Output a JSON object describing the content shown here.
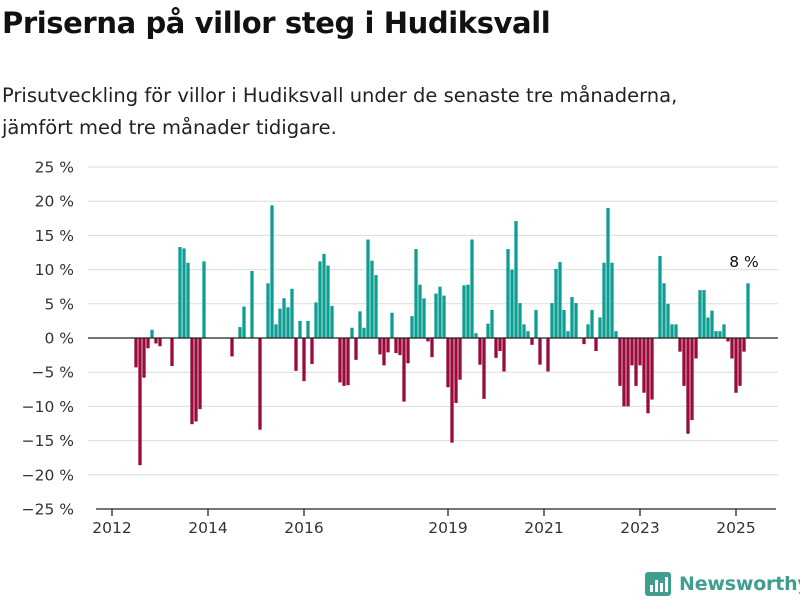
{
  "header": {
    "title": "Priserna på villor steg i Hudiksvall",
    "subtitle_lines": [
      "Prisutveckling för villor i Hudiksvall under de senaste tre månaderna,",
      "jämfört med tre månader tidigare."
    ]
  },
  "brand": {
    "name": "Newsworthy",
    "icon": "bar-chart-logo-icon",
    "color": "#3f9e8d"
  },
  "colors": {
    "positive": "#0f9f92",
    "negative": "#9a0b3c",
    "grid": "#dcdcdc",
    "axis": "#222222"
  },
  "chart_data": {
    "type": "bar",
    "x_axis": {
      "type": "date",
      "ticks": [
        {
          "date": "2012-01",
          "label": "2012"
        },
        {
          "date": "2014-01",
          "label": "2014"
        },
        {
          "date": "2016-01",
          "label": "2016"
        },
        {
          "date": "2019-01",
          "label": "2019"
        },
        {
          "date": "2021-01",
          "label": "2021"
        },
        {
          "date": "2023-01",
          "label": "2023"
        },
        {
          "date": "2025-01",
          "label": "2025"
        }
      ],
      "range": [
        "2011-09",
        "2025-11"
      ]
    },
    "y_axis": {
      "unit": "%",
      "ticks": [
        25,
        20,
        15,
        10,
        5,
        0,
        -5,
        -10,
        -15,
        -20,
        -25
      ],
      "tick_labels": [
        "25 %",
        "20 %",
        "15 %",
        "10 %",
        "5 %",
        "0 %",
        "−5 %",
        "−10 %",
        "−15 %",
        "−20 %",
        "−25 %"
      ],
      "ylim": [
        -25,
        25
      ]
    },
    "grid": true,
    "annotation": {
      "date": "2025-03",
      "label": "8 %"
    },
    "series": [
      {
        "values": [
          {
            "date": "2012-07",
            "value": -4.3
          },
          {
            "date": "2012-08",
            "value": -18.6
          },
          {
            "date": "2012-09",
            "value": -5.8
          },
          {
            "date": "2012-10",
            "value": -1.5
          },
          {
            "date": "2012-11",
            "value": 1.2
          },
          {
            "date": "2012-12",
            "value": -0.8
          },
          {
            "date": "2013-01",
            "value": -1.2
          },
          {
            "date": "2013-04",
            "value": -4.1
          },
          {
            "date": "2013-06",
            "value": 13.3
          },
          {
            "date": "2013-07",
            "value": 13.1
          },
          {
            "date": "2013-08",
            "value": 11.0
          },
          {
            "date": "2013-09",
            "value": -12.6
          },
          {
            "date": "2013-10",
            "value": -12.2
          },
          {
            "date": "2013-11",
            "value": -10.4
          },
          {
            "date": "2013-12",
            "value": 11.2
          },
          {
            "date": "2014-07",
            "value": -2.7
          },
          {
            "date": "2014-09",
            "value": 1.6
          },
          {
            "date": "2014-10",
            "value": 4.6
          },
          {
            "date": "2014-12",
            "value": 9.8
          },
          {
            "date": "2015-02",
            "value": -13.4
          },
          {
            "date": "2015-04",
            "value": 8.0
          },
          {
            "date": "2015-05",
            "value": 19.4
          },
          {
            "date": "2015-06",
            "value": 2.0
          },
          {
            "date": "2015-07",
            "value": 4.3
          },
          {
            "date": "2015-08",
            "value": 5.8
          },
          {
            "date": "2015-09",
            "value": 4.5
          },
          {
            "date": "2015-10",
            "value": 7.2
          },
          {
            "date": "2015-11",
            "value": -4.8
          },
          {
            "date": "2015-12",
            "value": 2.5
          },
          {
            "date": "2016-01",
            "value": -6.3
          },
          {
            "date": "2016-02",
            "value": 2.5
          },
          {
            "date": "2016-03",
            "value": -3.8
          },
          {
            "date": "2016-04",
            "value": 5.2
          },
          {
            "date": "2016-05",
            "value": 11.2
          },
          {
            "date": "2016-06",
            "value": 12.3
          },
          {
            "date": "2016-07",
            "value": 10.6
          },
          {
            "date": "2016-08",
            "value": 4.7
          },
          {
            "date": "2016-10",
            "value": -6.5
          },
          {
            "date": "2016-11",
            "value": -7.0
          },
          {
            "date": "2016-12",
            "value": -6.9
          },
          {
            "date": "2017-01",
            "value": 1.5
          },
          {
            "date": "2017-02",
            "value": -3.2
          },
          {
            "date": "2017-03",
            "value": 3.9
          },
          {
            "date": "2017-04",
            "value": 1.5
          },
          {
            "date": "2017-05",
            "value": 14.4
          },
          {
            "date": "2017-06",
            "value": 11.3
          },
          {
            "date": "2017-07",
            "value": 9.2
          },
          {
            "date": "2017-08",
            "value": -2.4
          },
          {
            "date": "2017-09",
            "value": -4.0
          },
          {
            "date": "2017-10",
            "value": -2.1
          },
          {
            "date": "2017-11",
            "value": 3.7
          },
          {
            "date": "2017-12",
            "value": -2.2
          },
          {
            "date": "2018-01",
            "value": -2.5
          },
          {
            "date": "2018-02",
            "value": -9.3
          },
          {
            "date": "2018-03",
            "value": -3.7
          },
          {
            "date": "2018-04",
            "value": 3.2
          },
          {
            "date": "2018-05",
            "value": 13.0
          },
          {
            "date": "2018-06",
            "value": 7.8
          },
          {
            "date": "2018-07",
            "value": 5.8
          },
          {
            "date": "2018-08",
            "value": -0.5
          },
          {
            "date": "2018-09",
            "value": -2.8
          },
          {
            "date": "2018-10",
            "value": 6.5
          },
          {
            "date": "2018-11",
            "value": 7.5
          },
          {
            "date": "2018-12",
            "value": 6.2
          },
          {
            "date": "2019-01",
            "value": -7.2
          },
          {
            "date": "2019-02",
            "value": -15.3
          },
          {
            "date": "2019-03",
            "value": -9.5
          },
          {
            "date": "2019-04",
            "value": -6.1
          },
          {
            "date": "2019-05",
            "value": 7.7
          },
          {
            "date": "2019-06",
            "value": 7.8
          },
          {
            "date": "2019-07",
            "value": 14.4
          },
          {
            "date": "2019-08",
            "value": 0.7
          },
          {
            "date": "2019-09",
            "value": -3.9
          },
          {
            "date": "2019-10",
            "value": -8.9
          },
          {
            "date": "2019-11",
            "value": 2.1
          },
          {
            "date": "2019-12",
            "value": 4.1
          },
          {
            "date": "2020-01",
            "value": -2.9
          },
          {
            "date": "2020-02",
            "value": -1.9
          },
          {
            "date": "2020-03",
            "value": -4.9
          },
          {
            "date": "2020-04",
            "value": 13.0
          },
          {
            "date": "2020-05",
            "value": 10.0
          },
          {
            "date": "2020-06",
            "value": 17.1
          },
          {
            "date": "2020-07",
            "value": 5.1
          },
          {
            "date": "2020-08",
            "value": 2.0
          },
          {
            "date": "2020-09",
            "value": 1.0
          },
          {
            "date": "2020-10",
            "value": -1.0
          },
          {
            "date": "2020-11",
            "value": 4.1
          },
          {
            "date": "2020-12",
            "value": -3.9
          },
          {
            "date": "2021-02",
            "value": -4.9
          },
          {
            "date": "2021-03",
            "value": 5.1
          },
          {
            "date": "2021-04",
            "value": 10.1
          },
          {
            "date": "2021-05",
            "value": 11.1
          },
          {
            "date": "2021-06",
            "value": 4.1
          },
          {
            "date": "2021-07",
            "value": 1.0
          },
          {
            "date": "2021-08",
            "value": 6.0
          },
          {
            "date": "2021-09",
            "value": 5.1
          },
          {
            "date": "2021-10",
            "value": 0.1
          },
          {
            "date": "2021-11",
            "value": -0.9
          },
          {
            "date": "2021-12",
            "value": 2.0
          },
          {
            "date": "2022-01",
            "value": 4.1
          },
          {
            "date": "2022-02",
            "value": -1.9
          },
          {
            "date": "2022-03",
            "value": 3.0
          },
          {
            "date": "2022-04",
            "value": 11.0
          },
          {
            "date": "2022-05",
            "value": 19.0
          },
          {
            "date": "2022-06",
            "value": 11.0
          },
          {
            "date": "2022-07",
            "value": 1.0
          },
          {
            "date": "2022-08",
            "value": -7.0
          },
          {
            "date": "2022-09",
            "value": -10.0
          },
          {
            "date": "2022-10",
            "value": -10.0
          },
          {
            "date": "2022-11",
            "value": -4.0
          },
          {
            "date": "2022-12",
            "value": -7.0
          },
          {
            "date": "2023-01",
            "value": -4.0
          },
          {
            "date": "2023-02",
            "value": -8.0
          },
          {
            "date": "2023-03",
            "value": -11.0
          },
          {
            "date": "2023-04",
            "value": -9.0
          },
          {
            "date": "2023-05",
            "value": 0.0
          },
          {
            "date": "2023-06",
            "value": 12.0
          },
          {
            "date": "2023-07",
            "value": 8.0
          },
          {
            "date": "2023-08",
            "value": 5.0
          },
          {
            "date": "2023-09",
            "value": 2.0
          },
          {
            "date": "2023-10",
            "value": 2.0
          },
          {
            "date": "2023-11",
            "value": -2.0
          },
          {
            "date": "2023-12",
            "value": -7.0
          },
          {
            "date": "2024-01",
            "value": -14.0
          },
          {
            "date": "2024-02",
            "value": -12.0
          },
          {
            "date": "2024-03",
            "value": -3.0
          },
          {
            "date": "2024-04",
            "value": 7.0
          },
          {
            "date": "2024-05",
            "value": 7.0
          },
          {
            "date": "2024-06",
            "value": 3.0
          },
          {
            "date": "2024-07",
            "value": 4.0
          },
          {
            "date": "2024-08",
            "value": 1.0
          },
          {
            "date": "2024-09",
            "value": 1.0
          },
          {
            "date": "2024-10",
            "value": 2.0
          },
          {
            "date": "2024-11",
            "value": -0.5
          },
          {
            "date": "2024-12",
            "value": -3.0
          },
          {
            "date": "2025-01",
            "value": -8.0
          },
          {
            "date": "2025-02",
            "value": -7.0
          },
          {
            "date": "2025-03",
            "value": -2.0
          },
          {
            "date": "2025-04",
            "value": 8.0
          }
        ]
      }
    ]
  }
}
